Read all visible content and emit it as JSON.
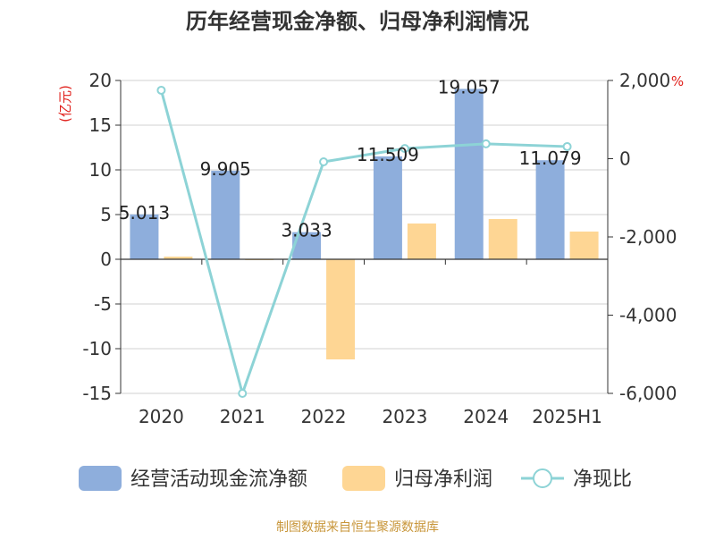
{
  "chart_data": {
    "type": "bar",
    "title": "历年经营现金净额、归母净利润情况",
    "categories": [
      "2020",
      "2021",
      "2022",
      "2023",
      "2024",
      "2025H1"
    ],
    "series": [
      {
        "name": "经营活动现金流净额",
        "type": "bar",
        "axis": "left",
        "color": "#8eaedc",
        "values": [
          5.013,
          9.905,
          3.033,
          11.509,
          19.057,
          11.079
        ]
      },
      {
        "name": "归母净利润",
        "type": "bar",
        "axis": "left",
        "color": "#fed694",
        "values": [
          0.3,
          -0.1,
          -11.2,
          4.0,
          4.5,
          3.1
        ]
      },
      {
        "name": "净现比",
        "type": "line",
        "axis": "right",
        "color": "#8dd3d6",
        "values": [
          1750,
          -6000,
          -80,
          260,
          380,
          310
        ]
      }
    ],
    "data_labels": [
      "5.013",
      "9.905",
      "3.033",
      "11.509",
      "19.057",
      "11.079"
    ],
    "y_left": {
      "unit": "(亿元)",
      "ylim": [
        -15,
        20
      ],
      "ticks": [
        "20",
        "15",
        "10",
        "5",
        "0",
        "-5",
        "-10",
        "-15"
      ]
    },
    "y_right": {
      "unit": "%",
      "ylim": [
        -6000,
        2000
      ],
      "ticks": [
        "2,000",
        "0",
        "-2,000",
        "-4,000",
        "-6,000"
      ]
    },
    "grid": true,
    "legend_position": "bottom",
    "source": "制图数据来自恒生聚源数据库",
    "colors": {
      "title": "#333333",
      "axis": "#333333",
      "unit": "#e0201b",
      "source": "#c8963a",
      "grid": "#d0d0d0"
    }
  }
}
